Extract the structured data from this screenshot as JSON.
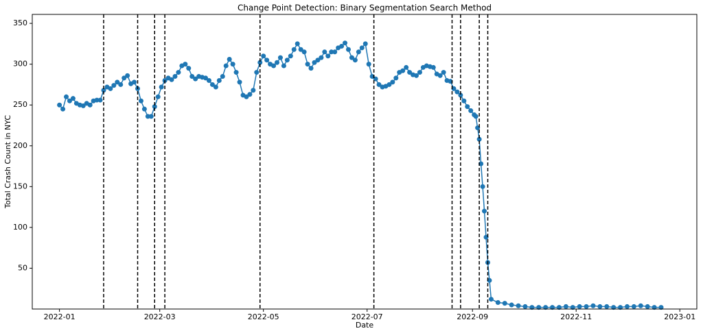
{
  "chart_data": {
    "type": "line",
    "title": "Change Point Detection: Binary Segmentation Search Method",
    "x_label": "Date",
    "y_label": "Total Crash Count in NYC",
    "x": [
      "2022-01-01",
      "2022-01-03",
      "2022-01-05",
      "2022-01-07",
      "2022-01-09",
      "2022-01-11",
      "2022-01-13",
      "2022-01-15",
      "2022-01-17",
      "2022-01-19",
      "2022-01-21",
      "2022-01-23",
      "2022-01-25",
      "2022-01-27",
      "2022-01-29",
      "2022-01-31",
      "2022-02-02",
      "2022-02-04",
      "2022-02-06",
      "2022-02-08",
      "2022-02-10",
      "2022-02-12",
      "2022-02-14",
      "2022-02-16",
      "2022-02-18",
      "2022-02-20",
      "2022-02-22",
      "2022-02-24",
      "2022-02-26",
      "2022-02-28",
      "2022-03-02",
      "2022-03-04",
      "2022-03-06",
      "2022-03-08",
      "2022-03-10",
      "2022-03-12",
      "2022-03-14",
      "2022-03-16",
      "2022-03-18",
      "2022-03-20",
      "2022-03-22",
      "2022-03-24",
      "2022-03-26",
      "2022-03-28",
      "2022-03-30",
      "2022-04-01",
      "2022-04-03",
      "2022-04-05",
      "2022-04-07",
      "2022-04-09",
      "2022-04-11",
      "2022-04-13",
      "2022-04-15",
      "2022-04-17",
      "2022-04-19",
      "2022-04-21",
      "2022-04-23",
      "2022-04-25",
      "2022-04-27",
      "2022-04-29",
      "2022-05-01",
      "2022-05-03",
      "2022-05-05",
      "2022-05-07",
      "2022-05-09",
      "2022-05-11",
      "2022-05-13",
      "2022-05-15",
      "2022-05-17",
      "2022-05-19",
      "2022-05-21",
      "2022-05-23",
      "2022-05-25",
      "2022-05-27",
      "2022-05-29",
      "2022-05-31",
      "2022-06-02",
      "2022-06-04",
      "2022-06-06",
      "2022-06-08",
      "2022-06-10",
      "2022-06-12",
      "2022-06-14",
      "2022-06-16",
      "2022-06-18",
      "2022-06-20",
      "2022-06-22",
      "2022-06-24",
      "2022-06-26",
      "2022-06-28",
      "2022-06-30",
      "2022-07-02",
      "2022-07-04",
      "2022-07-06",
      "2022-07-08",
      "2022-07-10",
      "2022-07-12",
      "2022-07-14",
      "2022-07-16",
      "2022-07-18",
      "2022-07-20",
      "2022-07-22",
      "2022-07-24",
      "2022-07-26",
      "2022-07-28",
      "2022-07-30",
      "2022-08-01",
      "2022-08-03",
      "2022-08-05",
      "2022-08-07",
      "2022-08-09",
      "2022-08-11",
      "2022-08-13",
      "2022-08-15",
      "2022-08-17",
      "2022-08-19",
      "2022-08-21",
      "2022-08-23",
      "2022-08-25",
      "2022-08-27",
      "2022-08-29",
      "2022-08-31",
      "2022-09-02",
      "2022-09-03",
      "2022-09-04",
      "2022-09-05",
      "2022-09-06",
      "2022-09-07",
      "2022-09-08",
      "2022-09-09",
      "2022-09-10",
      "2022-09-11",
      "2022-09-12",
      "2022-09-16",
      "2022-09-20",
      "2022-09-24",
      "2022-09-28",
      "2022-10-02",
      "2022-10-06",
      "2022-10-10",
      "2022-10-14",
      "2022-10-18",
      "2022-10-22",
      "2022-10-26",
      "2022-10-30",
      "2022-11-03",
      "2022-11-07",
      "2022-11-11",
      "2022-11-15",
      "2022-11-19",
      "2022-11-23",
      "2022-11-27",
      "2022-12-01",
      "2022-12-05",
      "2022-12-09",
      "2022-12-13",
      "2022-12-17",
      "2022-12-21"
    ],
    "values": [
      250,
      245,
      260,
      255,
      258,
      252,
      250,
      249,
      252,
      250,
      255,
      256,
      256,
      268,
      272,
      270,
      274,
      278,
      275,
      283,
      286,
      276,
      278,
      270,
      255,
      245,
      236,
      236,
      248,
      260,
      272,
      280,
      283,
      281,
      285,
      290,
      298,
      300,
      295,
      285,
      282,
      285,
      284,
      283,
      280,
      275,
      272,
      280,
      285,
      298,
      306,
      300,
      290,
      278,
      262,
      260,
      263,
      268,
      290,
      302,
      310,
      305,
      300,
      298,
      302,
      308,
      298,
      305,
      310,
      318,
      325,
      318,
      315,
      300,
      295,
      302,
      305,
      308,
      315,
      310,
      315,
      315,
      320,
      322,
      326,
      318,
      308,
      305,
      315,
      320,
      325,
      300,
      285,
      282,
      275,
      272,
      273,
      275,
      278,
      283,
      290,
      292,
      296,
      290,
      287,
      286,
      290,
      296,
      298,
      297,
      296,
      288,
      286,
      290,
      280,
      279,
      270,
      266,
      262,
      255,
      248,
      243,
      238,
      236,
      222,
      208,
      178,
      150,
      120,
      88,
      57,
      35,
      12,
      8,
      7,
      5,
      4,
      3,
      2,
      2,
      2,
      2,
      2,
      3,
      2,
      3,
      3,
      4,
      3,
      3,
      2,
      2,
      3,
      3,
      4,
      3,
      2,
      2
    ],
    "color": "#1f77b4",
    "change_points": [
      "2022-01-27",
      "2022-02-16",
      "2022-02-26",
      "2022-03-04",
      "2022-04-29",
      "2022-07-05",
      "2022-08-20",
      "2022-08-25",
      "2022-09-05",
      "2022-09-10"
    ],
    "change_point_color": "#000000",
    "xlim": [
      "2021-12-16",
      "2023-01-11"
    ],
    "xticks": [
      {
        "value": "2022-01-01",
        "label": "2022-01"
      },
      {
        "value": "2022-03-01",
        "label": "2022-03"
      },
      {
        "value": "2022-05-01",
        "label": "2022-05"
      },
      {
        "value": "2022-07-01",
        "label": "2022-07"
      },
      {
        "value": "2022-09-01",
        "label": "2022-09"
      },
      {
        "value": "2022-11-01",
        "label": "2022-11"
      },
      {
        "value": "2023-01-01",
        "label": "2023-01"
      }
    ],
    "ylim": [
      0,
      361
    ],
    "yticks": [
      50,
      100,
      150,
      200,
      250,
      300,
      350
    ],
    "grid": false
  }
}
